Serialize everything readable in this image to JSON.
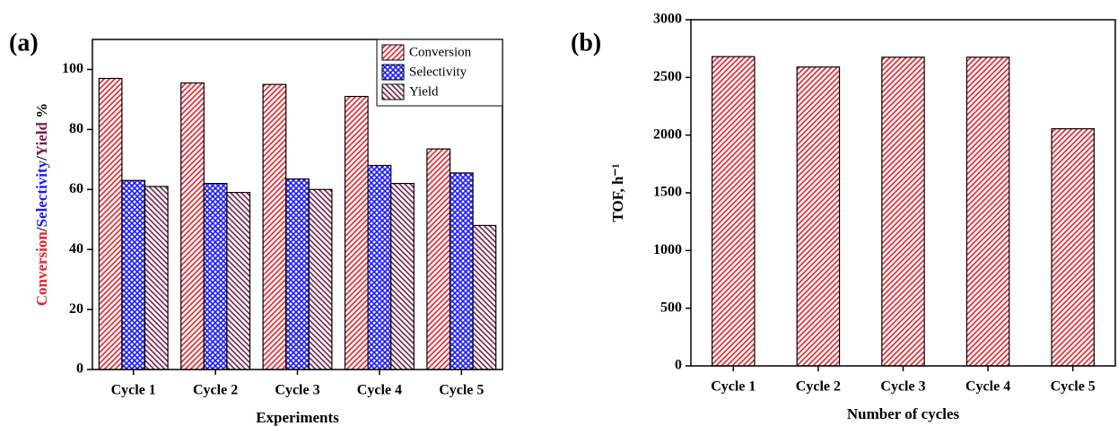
{
  "chart_data": [
    {
      "type": "bar",
      "panel_label": "(a)",
      "xlabel": "Experiments",
      "ylabel_parts": [
        "Conversion",
        "/",
        "Selectivity",
        "/",
        "Yield",
        " %"
      ],
      "ylabel_colors": [
        "#e8202a",
        "#000000",
        "#1a1aff",
        "#000000",
        "#7a1f4a",
        "#000000"
      ],
      "categories": [
        "Cycle 1",
        "Cycle 2",
        "Cycle 3",
        "Cycle 4",
        "Cycle 5"
      ],
      "series": [
        {
          "name": "Conversion",
          "color": "#e8202a",
          "pattern": "forward",
          "values": [
            97,
            95.5,
            95,
            91,
            73.5
          ]
        },
        {
          "name": "Selectivity",
          "color": "#1a1aff",
          "pattern": "cross",
          "values": [
            63,
            62,
            63.5,
            68,
            65.5
          ]
        },
        {
          "name": "Yield",
          "color": "#7a1f4a",
          "pattern": "backward",
          "values": [
            61,
            59,
            60,
            62,
            48
          ]
        }
      ],
      "ylim": [
        0,
        110
      ],
      "yticks": [
        0,
        20,
        40,
        60,
        80,
        100
      ],
      "legend": "upper right"
    },
    {
      "type": "bar",
      "panel_label": "(b)",
      "xlabel": "Number of cycles",
      "ylabel": "TOF, h⁻¹",
      "categories": [
        "Cycle 1",
        "Cycle 2",
        "Cycle 3",
        "Cycle 4",
        "Cycle 5"
      ],
      "series": [
        {
          "color": "#e8202a",
          "pattern": "forward",
          "values": [
            2680,
            2590,
            2675,
            2675,
            2055
          ]
        }
      ],
      "ylim": [
        0,
        3000
      ],
      "yticks": [
        0,
        500,
        1000,
        1500,
        2000,
        2500,
        3000
      ]
    }
  ]
}
